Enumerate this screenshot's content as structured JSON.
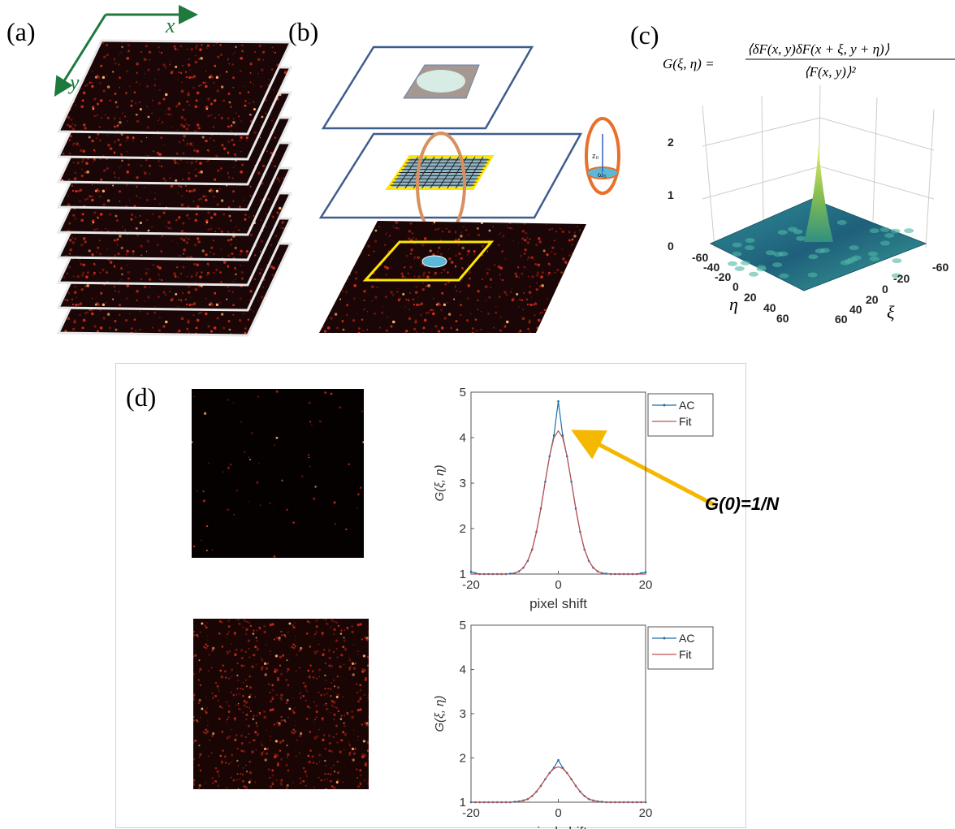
{
  "panel_a": {
    "label": "(a)",
    "x_axis": "x",
    "y_axis": "y"
  },
  "panel_b": {
    "label": "(b)",
    "z0": "z₀",
    "w0": "ω₀"
  },
  "panel_c": {
    "label": "(c)",
    "formula": {
      "lhs": "G(ξ, η) =",
      "numerator": "⟨δF(x, y)δF(x + ξ, y + η)⟩",
      "denominator": "⟨F(x, y)⟩²"
    },
    "z_ticks": [
      0,
      1,
      2
    ],
    "eta_label": "η",
    "eta_ticks": [
      -60,
      -40,
      -20,
      0,
      20,
      40,
      60
    ],
    "xi_label": "ξ",
    "xi_ticks": [
      -60,
      -20,
      0,
      20,
      40,
      60
    ]
  },
  "panel_d": {
    "label": "(d)",
    "annotation": "G(0)=1/N"
  },
  "chart_data": [
    {
      "type": "line",
      "xlabel": "pixel shift",
      "ylabel": "G(ξ, η)",
      "x": [
        -20,
        -19,
        -18,
        -17,
        -16,
        -15,
        -14,
        -13,
        -12,
        -11,
        -10,
        -9,
        -8,
        -7,
        -6,
        -5,
        -4,
        -3,
        -2,
        -1,
        0,
        1,
        2,
        3,
        4,
        5,
        6,
        7,
        8,
        9,
        10,
        11,
        12,
        13,
        14,
        15,
        16,
        17,
        18,
        19,
        20
      ],
      "series": [
        {
          "name": "AC",
          "color": "#1f6fa8",
          "markers": true,
          "values": [
            1.05,
            1.02,
            1,
            1,
            1,
            1,
            1,
            1,
            1,
            1.01,
            1.02,
            1.06,
            1.14,
            1.29,
            1.54,
            1.93,
            2.44,
            3.03,
            3.59,
            4.05,
            4.8,
            4.05,
            3.59,
            3.03,
            2.44,
            1.93,
            1.54,
            1.29,
            1.14,
            1.06,
            1.02,
            1.01,
            1,
            1,
            1,
            1,
            1,
            1,
            1,
            1.02,
            1.04
          ]
        },
        {
          "name": "Fit",
          "color": "#c0504d",
          "markers": false,
          "values": [
            1,
            1,
            1,
            1,
            1,
            1,
            1,
            1,
            1,
            1.01,
            1.02,
            1.06,
            1.14,
            1.29,
            1.54,
            1.93,
            2.44,
            3.03,
            3.59,
            4.0,
            4.15,
            4.0,
            3.59,
            3.03,
            2.44,
            1.93,
            1.54,
            1.29,
            1.14,
            1.06,
            1.02,
            1.01,
            1,
            1,
            1,
            1,
            1,
            1,
            1,
            1,
            1
          ]
        }
      ],
      "xlim": [
        -20,
        20
      ],
      "ylim": [
        1,
        5
      ],
      "xticks": [
        -20,
        0,
        20
      ],
      "yticks": [
        1,
        2,
        3,
        4,
        5
      ],
      "legend": "upper right"
    },
    {
      "type": "line",
      "xlabel": "pixel shift",
      "ylabel": "G(ξ, η)",
      "x": [
        -20,
        -19,
        -18,
        -17,
        -16,
        -15,
        -14,
        -13,
        -12,
        -11,
        -10,
        -9,
        -8,
        -7,
        -6,
        -5,
        -4,
        -3,
        -2,
        -1,
        0,
        1,
        2,
        3,
        4,
        5,
        6,
        7,
        8,
        9,
        10,
        11,
        12,
        13,
        14,
        15,
        16,
        17,
        18,
        19,
        20
      ],
      "series": [
        {
          "name": "AC",
          "color": "#1f6fa8",
          "markers": true,
          "values": [
            1,
            1,
            1,
            1,
            1,
            1,
            1,
            1,
            1,
            1,
            1.01,
            1.02,
            1.04,
            1.07,
            1.14,
            1.24,
            1.37,
            1.52,
            1.66,
            1.78,
            1.95,
            1.78,
            1.66,
            1.52,
            1.37,
            1.24,
            1.14,
            1.07,
            1.04,
            1.02,
            1.01,
            1,
            1,
            1,
            1,
            1,
            1,
            1,
            1,
            1,
            1
          ]
        },
        {
          "name": "Fit",
          "color": "#c0504d",
          "markers": false,
          "values": [
            1,
            1,
            1,
            1,
            1,
            1,
            1,
            1,
            1,
            1,
            1.01,
            1.02,
            1.04,
            1.07,
            1.14,
            1.24,
            1.37,
            1.52,
            1.66,
            1.76,
            1.8,
            1.76,
            1.66,
            1.52,
            1.37,
            1.24,
            1.14,
            1.07,
            1.04,
            1.02,
            1.01,
            1,
            1,
            1,
            1,
            1,
            1,
            1,
            1,
            1,
            1
          ]
        }
      ],
      "xlim": [
        -20,
        20
      ],
      "ylim": [
        1,
        5
      ],
      "xticks": [
        -20,
        0,
        20
      ],
      "yticks": [
        1,
        2,
        3,
        4,
        5
      ],
      "legend": "upper right"
    }
  ]
}
